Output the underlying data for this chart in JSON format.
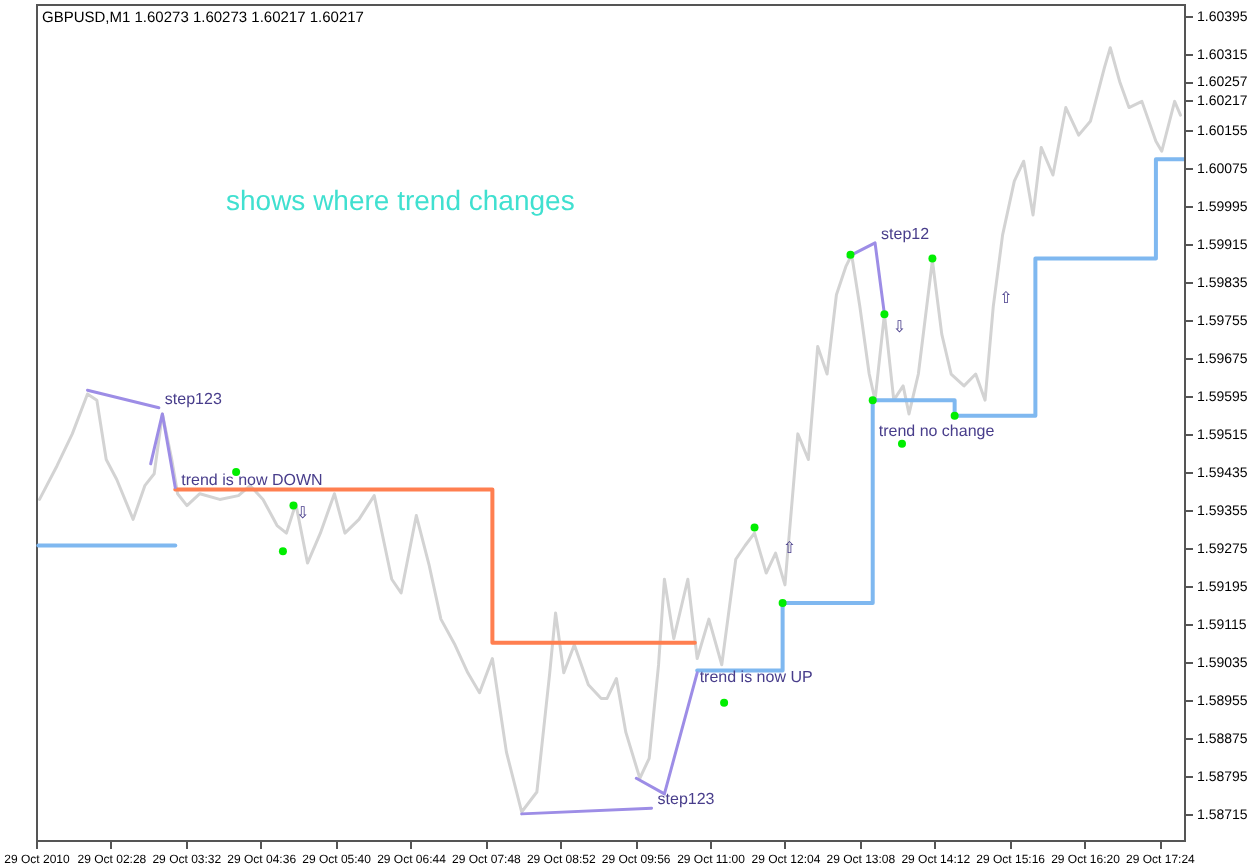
{
  "chart_data": {
    "type": "line",
    "title": "GBPUSD,M1 1.60273 1.60273 1.60217 1.60217",
    "subtitle": "shows where trend changes",
    "xlim": [
      "2010-10-29T01:24",
      "2010-10-29T17:45"
    ],
    "xticks": [
      {
        "value": "2010-10-29T01:24",
        "label": "29 Oct 2010"
      },
      {
        "value": "2010-10-29T02:28",
        "label": "29 Oct 02:28"
      },
      {
        "value": "2010-10-29T03:32",
        "label": "29 Oct 03:32"
      },
      {
        "value": "2010-10-29T04:36",
        "label": "29 Oct 04:36"
      },
      {
        "value": "2010-10-29T05:40",
        "label": "29 Oct 05:40"
      },
      {
        "value": "2010-10-29T06:44",
        "label": "29 Oct 06:44"
      },
      {
        "value": "2010-10-29T07:48",
        "label": "29 Oct 07:48"
      },
      {
        "value": "2010-10-29T08:52",
        "label": "29 Oct 08:52"
      },
      {
        "value": "2010-10-29T09:56",
        "label": "29 Oct 09:56"
      },
      {
        "value": "2010-10-29T11:00",
        "label": "29 Oct 11:00"
      },
      {
        "value": "2010-10-29T12:04",
        "label": "29 Oct 12:04"
      },
      {
        "value": "2010-10-29T13:08",
        "label": "29 Oct 13:08"
      },
      {
        "value": "2010-10-29T14:12",
        "label": "29 Oct 14:12"
      },
      {
        "value": "2010-10-29T15:16",
        "label": "29 Oct 15:16"
      },
      {
        "value": "2010-10-29T16:20",
        "label": "29 Oct 16:20"
      },
      {
        "value": "2010-10-29T17:24",
        "label": "29 Oct 17:24"
      }
    ],
    "ylim": [
      1.5866,
      1.6042
    ],
    "yticks": [
      1.58715,
      1.58795,
      1.58875,
      1.58955,
      1.59035,
      1.59115,
      1.59195,
      1.59275,
      1.59355,
      1.59435,
      1.59515,
      1.59595,
      1.59675,
      1.59755,
      1.59835,
      1.59915,
      1.59995,
      1.60075,
      1.60155,
      1.60217,
      1.60257,
      1.60315,
      1.60395
    ],
    "series": [
      {
        "color": "#d3d3d3",
        "x": [
          "2010-10-29T01:27",
          "2010-10-29T01:42",
          "2010-10-29T01:55",
          "2010-10-29T02:08",
          "2010-10-29T02:16",
          "2010-10-29T02:24",
          "2010-10-29T02:33",
          "2010-10-29T02:47",
          "2010-10-29T02:57",
          "2010-10-29T03:05",
          "2010-10-29T03:12",
          "2010-10-29T03:20",
          "2010-10-29T03:25",
          "2010-10-29T03:33",
          "2010-10-29T03:44",
          "2010-10-29T04:01",
          "2010-10-29T04:17",
          "2010-10-29T04:27",
          "2010-10-29T04:38",
          "2010-10-29T04:50",
          "2010-10-29T04:58",
          "2010-10-29T05:06",
          "2010-10-29T05:16",
          "2010-10-29T05:27",
          "2010-10-29T05:39",
          "2010-10-29T05:48",
          "2010-10-29T06:00",
          "2010-10-29T06:13",
          "2010-10-29T06:28",
          "2010-10-29T06:36",
          "2010-10-29T06:49",
          "2010-10-29T07:00",
          "2010-10-29T07:10",
          "2010-10-29T07:22",
          "2010-10-29T07:33",
          "2010-10-29T07:43",
          "2010-10-29T07:54",
          "2010-10-29T08:06",
          "2010-10-29T08:19",
          "2010-10-29T08:32",
          "2010-10-29T08:43",
          "2010-10-29T08:48",
          "2010-10-29T08:55",
          "2010-10-29T09:04",
          "2010-10-29T09:16",
          "2010-10-29T09:27",
          "2010-10-29T09:32",
          "2010-10-29T09:40",
          "2010-10-29T09:48",
          "2010-10-29T10:00",
          "2010-10-29T10:08",
          "2010-10-29T10:16",
          "2010-10-29T10:21",
          "2010-10-29T10:29",
          "2010-10-29T10:41",
          "2010-10-29T10:49",
          "2010-10-29T10:59",
          "2010-10-29T11:10",
          "2010-10-29T11:22",
          "2010-10-29T11:30",
          "2010-10-29T11:38",
          "2010-10-29T11:48",
          "2010-10-29T11:56",
          "2010-10-29T12:04",
          "2010-10-29T12:15",
          "2010-10-29T12:24",
          "2010-10-29T12:32",
          "2010-10-29T12:40",
          "2010-10-29T12:48",
          "2010-10-29T12:56",
          "2010-10-29T13:01",
          "2010-10-29T13:08",
          "2010-10-29T13:16",
          "2010-10-29T13:21",
          "2010-10-29T13:29",
          "2010-10-29T13:37",
          "2010-10-29T13:45",
          "2010-10-29T13:50",
          "2010-10-29T13:58",
          "2010-10-29T14:10",
          "2010-10-29T14:18",
          "2010-10-29T14:26",
          "2010-10-29T14:37",
          "2010-10-29T14:47",
          "2010-10-29T14:55",
          "2010-10-29T15:02",
          "2010-10-29T15:10",
          "2010-10-29T15:20",
          "2010-10-29T15:28",
          "2010-10-29T15:36",
          "2010-10-29T15:43",
          "2010-10-29T15:53",
          "2010-10-29T16:04",
          "2010-10-29T16:15",
          "2010-10-29T16:25",
          "2010-10-29T16:37",
          "2010-10-29T16:42",
          "2010-10-29T16:50",
          "2010-10-29T16:58",
          "2010-10-29T17:09",
          "2010-10-29T17:21",
          "2010-10-29T17:26",
          "2010-10-29T17:37",
          "2010-10-29T17:42"
        ],
        "values": [
          1.59377,
          1.59448,
          1.59515,
          1.59599,
          1.59586,
          1.59461,
          1.59419,
          1.59335,
          1.59406,
          1.59431,
          1.59557,
          1.59461,
          1.59389,
          1.59364,
          1.59389,
          1.59377,
          1.59385,
          1.59406,
          1.59377,
          1.59322,
          1.59306,
          1.59368,
          1.59243,
          1.59306,
          1.59389,
          1.59306,
          1.59335,
          1.59385,
          1.59209,
          1.5918,
          1.59343,
          1.59238,
          1.59125,
          1.59071,
          1.59012,
          1.5897,
          1.59042,
          1.58845,
          1.58719,
          1.58761,
          1.59012,
          1.59138,
          1.59012,
          1.59071,
          1.58987,
          1.58958,
          1.58958,
          1.59,
          1.58887,
          1.5879,
          1.58832,
          1.59029,
          1.59209,
          1.59084,
          1.59209,
          1.59042,
          1.59125,
          1.59029,
          1.59251,
          1.5928,
          1.59306,
          1.59222,
          1.59264,
          1.59197,
          1.59515,
          1.59461,
          1.59699,
          1.59641,
          1.59808,
          1.59867,
          1.59892,
          1.59783,
          1.59641,
          1.59586,
          1.59767,
          1.59586,
          1.59616,
          1.59557,
          1.59641,
          1.5988,
          1.59725,
          1.59641,
          1.59616,
          1.59641,
          1.59586,
          1.59783,
          1.59934,
          1.60047,
          1.60089,
          1.59976,
          1.60118,
          1.6006,
          1.60202,
          1.60144,
          1.60173,
          1.60286,
          1.60328,
          1.60257,
          1.60202,
          1.60215,
          1.60131,
          1.6011,
          1.60215,
          1.60186
        ]
      },
      {
        "type": "step",
        "color": "#7fb8f0",
        "x": [
          "2010-10-29T01:26",
          "2010-10-29T03:23"
        ],
        "values": [
          1.5928,
          1.5928
        ]
      },
      {
        "type": "step",
        "color": "#ff7f50",
        "x": [
          "2010-10-29T03:23",
          "2010-10-29T07:54",
          "2010-10-29T10:47"
        ],
        "values": [
          1.59398,
          1.59075,
          1.59075
        ]
      },
      {
        "type": "step",
        "color": "#7fb8f0",
        "x": [
          "2010-10-29T10:49",
          "2010-10-29T12:02",
          "2010-10-29T13:19",
          "2010-10-29T14:29",
          "2010-10-29T15:38",
          "2010-10-29T17:21",
          "2010-10-29T17:45"
        ],
        "values": [
          1.59017,
          1.59159,
          1.59586,
          1.59553,
          1.59884,
          1.60093,
          1.60093
        ]
      },
      {
        "type": "line",
        "color": "#9d8de6",
        "x": [
          "2010-10-29T02:08",
          "2010-10-29T03:09"
        ],
        "values": [
          1.59607,
          1.5957
        ]
      },
      {
        "type": "line",
        "color": "#9d8de6",
        "x": [
          "2010-10-29T03:02",
          "2010-10-29T03:12",
          "2010-10-29T03:23"
        ],
        "values": [
          1.59452,
          1.59557,
          1.59402
        ]
      },
      {
        "type": "line",
        "color": "#9d8de6",
        "x": [
          "2010-10-29T08:19",
          "2010-10-29T10:10"
        ],
        "values": [
          1.58715,
          1.58727
        ]
      },
      {
        "type": "line",
        "color": "#9d8de6",
        "x": [
          "2010-10-29T09:57",
          "2010-10-29T10:21",
          "2010-10-29T10:49"
        ],
        "values": [
          1.5879,
          1.58757,
          1.59012
        ]
      },
      {
        "type": "line",
        "color": "#9d8de6",
        "x": [
          "2010-10-29T12:58",
          "2010-10-29T13:21",
          "2010-10-29T13:29"
        ],
        "values": [
          1.59888,
          1.59917,
          1.59767
        ]
      },
      {
        "type": "scatter",
        "color": "#00ee00",
        "marker": "circle",
        "x": [
          "2010-10-29T04:15",
          "2010-10-29T04:55",
          "2010-10-29T05:04",
          "2010-10-29T11:12",
          "2010-10-29T11:38",
          "2010-10-29T12:02",
          "2010-10-29T13:00",
          "2010-10-29T13:19",
          "2010-10-29T13:29",
          "2010-10-29T13:44",
          "2010-10-29T14:10",
          "2010-10-29T14:29"
        ],
        "values": [
          1.59435,
          1.59268,
          1.59364,
          1.58949,
          1.59318,
          1.59159,
          1.59892,
          1.59586,
          1.59767,
          1.59494,
          1.59884,
          1.59553
        ]
      }
    ],
    "annotations": [
      {
        "text": "step123",
        "x": "2010-10-29T03:09",
        "y": 1.5957
      },
      {
        "text": "trend is now DOWN",
        "x": "2010-10-29T03:23",
        "y": 1.59398
      },
      {
        "text": "⇩",
        "x": "2010-10-29T05:01",
        "y": 1.59329
      },
      {
        "text": "step123",
        "x": "2010-10-29T10:10",
        "y": 1.58727
      },
      {
        "text": "trend is now UP",
        "x": "2010-10-29T10:46",
        "y": 1.58985
      },
      {
        "text": "⇧",
        "x": "2010-10-29T11:57",
        "y": 1.59256
      },
      {
        "text": "step12",
        "x": "2010-10-29T13:21",
        "y": 1.59917
      },
      {
        "text": "⇩",
        "x": "2010-10-29T13:31",
        "y": 1.59722
      },
      {
        "text": "trend no change",
        "x": "2010-10-29T13:19",
        "y": 1.59503
      },
      {
        "text": "⇧",
        "x": "2010-10-29T15:02",
        "y": 1.59783
      }
    ]
  }
}
